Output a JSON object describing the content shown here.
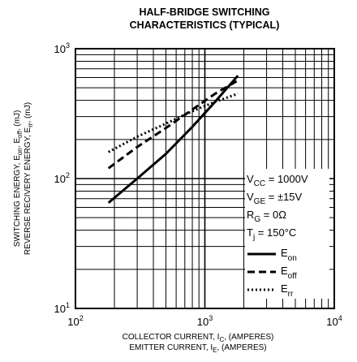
{
  "chart_data": {
    "type": "line",
    "title_line1": "HALF-BRIDGE SWITCHING",
    "title_line2": "CHARACTERISTICS (TYPICAL)",
    "xlabel": {
      "line1": {
        "pre": "COLLECTOR CURRENT, I",
        "sub": "C",
        "post": ", (AMPERES)"
      },
      "line2": {
        "pre": "EMITTER CURRENT, I",
        "sub": "E",
        "post": ", (AMPERES)"
      }
    },
    "ylabel": {
      "line1": {
        "p1": "SWITCHING ENERGY, E",
        "s1": "on",
        "p2": ", E",
        "s2": "off",
        "p3": ", (mJ)"
      },
      "line2": {
        "p1": "REVERSE RECIVERY ENERGY, E",
        "s1": "rr",
        "p2": ", (mJ)"
      }
    },
    "x_scale": "log",
    "y_scale": "log",
    "xlim": [
      100,
      10000
    ],
    "ylim": [
      10,
      1000
    ],
    "grid": true,
    "x_ticks": [
      {
        "base": "10",
        "exp": "2"
      },
      {
        "base": "10",
        "exp": "3"
      },
      {
        "base": "10",
        "exp": "4"
      }
    ],
    "y_ticks": [
      {
        "base": "10",
        "exp": "1"
      },
      {
        "base": "10",
        "exp": "2"
      },
      {
        "base": "10",
        "exp": "3"
      }
    ],
    "conditions": [
      {
        "pre": "V",
        "sub": "CC",
        "post": " = 1000V"
      },
      {
        "pre": "V",
        "sub": "GE",
        "post": " = ±15V"
      },
      {
        "pre": "R",
        "sub": "G",
        "post": " = 0Ω"
      },
      {
        "pre": "T",
        "sub": "j",
        "post": " = 150°C"
      }
    ],
    "legend_position": "bottom-right",
    "series": [
      {
        "name": "E",
        "sub": "on",
        "style": "solid",
        "x": [
          180,
          300,
          500,
          800,
          1200,
          1800
        ],
        "y": [
          65,
          100,
          155,
          250,
          390,
          620
        ]
      },
      {
        "name": "E",
        "sub": "off",
        "style": "dashed",
        "x": [
          180,
          300,
          500,
          800,
          1200,
          1800
        ],
        "y": [
          120,
          175,
          245,
          340,
          450,
          570
        ]
      },
      {
        "name": "E",
        "sub": "rr",
        "style": "dotted",
        "x": [
          180,
          300,
          500,
          800,
          1200,
          1800
        ],
        "y": [
          160,
          210,
          265,
          330,
          390,
          450
        ]
      }
    ],
    "colors": {
      "line": "#000000",
      "grid": "#000000",
      "background": "#ffffff"
    }
  }
}
